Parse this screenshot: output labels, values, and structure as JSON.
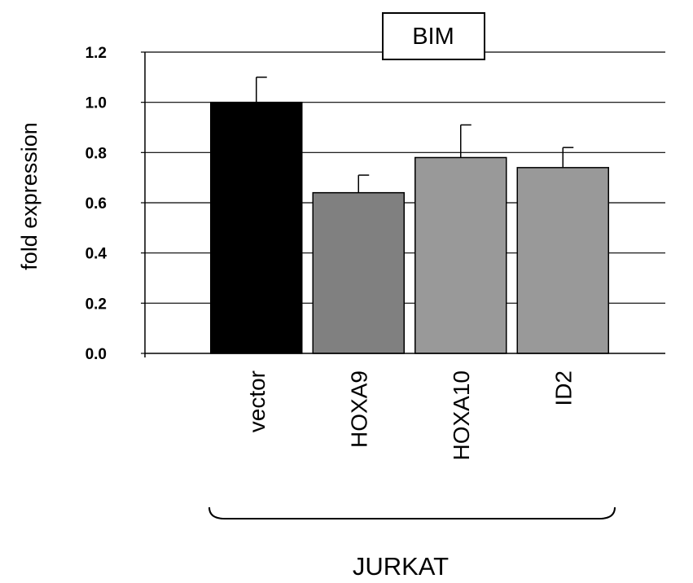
{
  "chart_data": {
    "type": "bar",
    "title": "BIM",
    "ylabel": "fold expression",
    "xlabel": "",
    "group_label": "JURKAT",
    "categories": [
      "vector",
      "HOXA9",
      "HOXA10",
      "ID2"
    ],
    "values": [
      1.0,
      0.64,
      0.78,
      0.74
    ],
    "errors": [
      0.1,
      0.07,
      0.13,
      0.08
    ],
    "ylim": [
      0,
      1.2
    ],
    "yticks": [
      "0.0",
      "0.2",
      "0.4",
      "0.6",
      "0.8",
      "1.0",
      "1.2"
    ],
    "grid": true,
    "colors": {
      "vector": "#000000",
      "HOXA9": "#808080",
      "HOXA10": "#999999",
      "ID2": "#999999"
    }
  }
}
